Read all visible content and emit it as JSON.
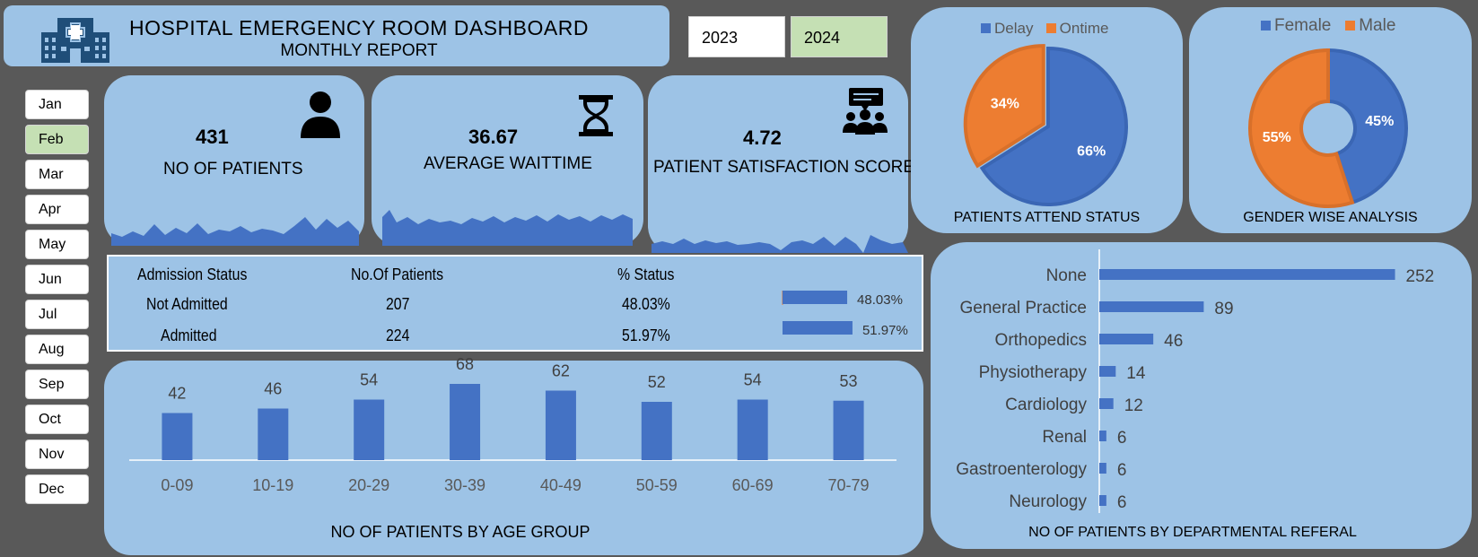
{
  "header": {
    "title": "HOSPITAL EMERGENCY ROOM DASHBOARD",
    "subtitle": "MONTHLY REPORT"
  },
  "years": [
    {
      "label": "2023",
      "selected": false
    },
    {
      "label": "2024",
      "selected": true
    }
  ],
  "months": [
    {
      "label": "Jan",
      "selected": false
    },
    {
      "label": "Feb",
      "selected": true
    },
    {
      "label": "Mar",
      "selected": false
    },
    {
      "label": "Apr",
      "selected": false
    },
    {
      "label": "May",
      "selected": false
    },
    {
      "label": "Jun",
      "selected": false
    },
    {
      "label": "Jul",
      "selected": false
    },
    {
      "label": "Aug",
      "selected": false
    },
    {
      "label": "Sep",
      "selected": false
    },
    {
      "label": "Oct",
      "selected": false
    },
    {
      "label": "Nov",
      "selected": false
    },
    {
      "label": "Dec",
      "selected": false
    }
  ],
  "kpis": {
    "patients": {
      "value": "431",
      "label": "NO OF PATIENTS",
      "icon": "person-icon"
    },
    "wait": {
      "value": "36.67",
      "label": "AVERAGE WAITTIME",
      "icon": "hourglass-icon"
    },
    "score": {
      "value": "4.72",
      "label": "PATIENT SATISFACTION SCORE",
      "icon": "people-chat-icon"
    }
  },
  "colors": {
    "blue": "#4472c4",
    "orange": "#ed7d31",
    "panel": "#9dc3e6",
    "background": "#595959",
    "selected": "#c5e0b4"
  },
  "admission": {
    "headers": [
      "Admission Status",
      "No.Of Patients",
      "% Status"
    ],
    "rows": [
      {
        "status": "Not Admitted",
        "patients": "207",
        "pct": "48.03%",
        "pct_value": 48.03
      },
      {
        "status": "Admitted",
        "patients": "224",
        "pct": "51.97%",
        "pct_value": 51.97
      }
    ]
  },
  "chart_data": [
    {
      "type": "pie",
      "title": "PATIENTS ATTEND STATUS",
      "legend": "top",
      "slices": [
        {
          "name": "Delay",
          "value": 66,
          "label": "66%"
        },
        {
          "name": "Ontime",
          "value": 34,
          "label": "34%"
        }
      ]
    },
    {
      "type": "pie",
      "subtype": "doughnut",
      "title": "GENDER WISE ANALYSIS",
      "legend": "top",
      "slices": [
        {
          "name": "Female",
          "value": 45,
          "label": "45%"
        },
        {
          "name": "Male",
          "value": 55,
          "label": "55%"
        }
      ]
    },
    {
      "type": "bar",
      "title": "NO OF PATIENTS BY AGE GROUP",
      "categories": [
        "0-09",
        "10-19",
        "20-29",
        "30-39",
        "40-49",
        "50-59",
        "60-69",
        "70-79"
      ],
      "values": [
        42,
        46,
        54,
        68,
        62,
        52,
        54,
        53
      ]
    },
    {
      "type": "bar",
      "orientation": "horizontal",
      "title": "NO OF PATIENTS  BY DEPARTMENTAL REFERAL",
      "categories": [
        "None",
        "General Practice",
        "Orthopedics",
        "Physiotherapy",
        "Cardiology",
        "Renal",
        "Gastroenterology",
        "Neurology"
      ],
      "values": [
        252,
        89,
        46,
        14,
        12,
        6,
        6,
        6
      ]
    }
  ]
}
